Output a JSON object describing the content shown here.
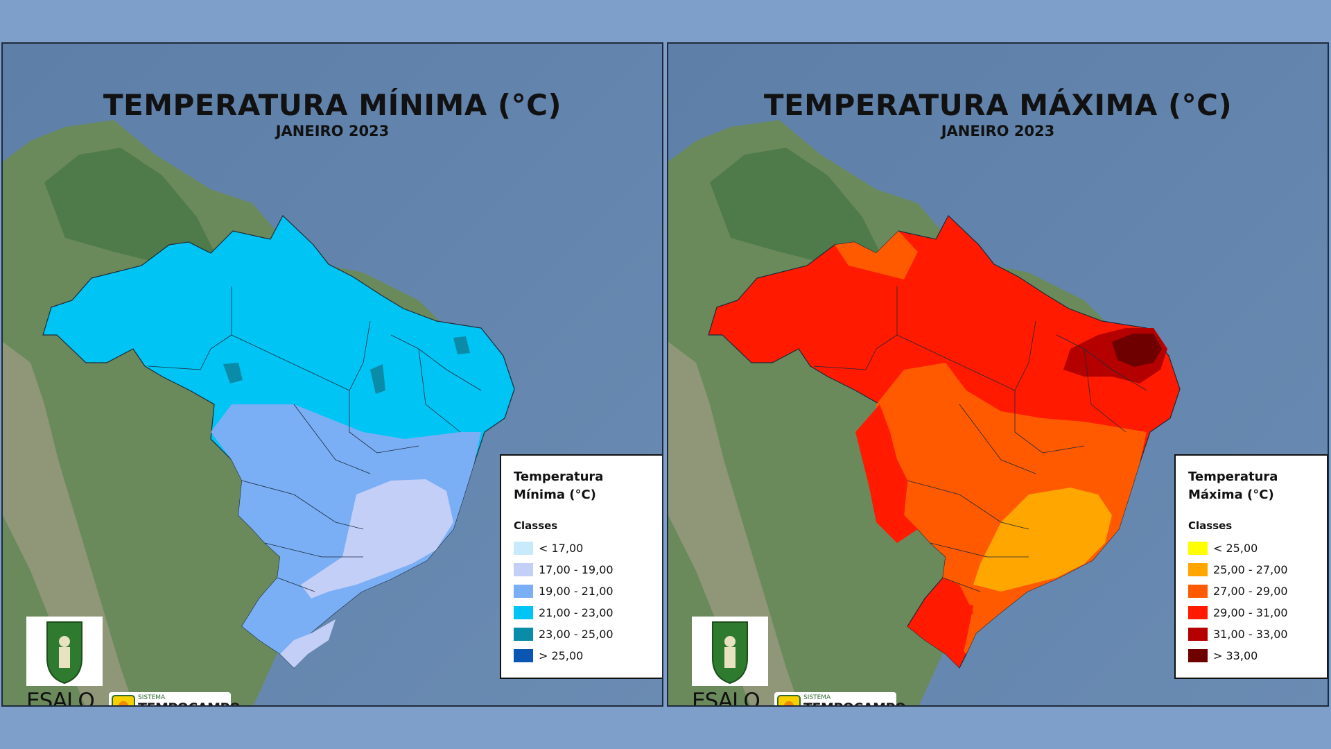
{
  "panels": [
    {
      "title": "TEMPERATURA MÍNIMA (°C)",
      "subtitle": "JANEIRO 2023",
      "legend_title_line1": "Temperatura",
      "legend_title_line2": "Mínima (°C)",
      "classes_label": "Classes",
      "classes": [
        {
          "label": "< 17,00",
          "color": "#c7ebfa"
        },
        {
          "label": "17,00 - 19,00",
          "color": "#c3cff7"
        },
        {
          "label": "19,00 - 21,00",
          "color": "#7aaef5"
        },
        {
          "label": "21,00 - 23,00",
          "color": "#00c4f4"
        },
        {
          "label": "23,00 - 25,00",
          "color": "#0a8ba8"
        },
        {
          "label": "> 25,00",
          "color": "#0b56b3"
        }
      ],
      "brazil_color": "#00c4f4"
    },
    {
      "title": "TEMPERATURA MÁXIMA (°C)",
      "subtitle": "JANEIRO 2023",
      "legend_title_line1": "Temperatura",
      "legend_title_line2": "Máxima (°C)",
      "classes_label": "Classes",
      "classes": [
        {
          "label": "< 25,00",
          "color": "#ffff00"
        },
        {
          "label": "25,00 - 27,00",
          "color": "#ffa600"
        },
        {
          "label": "27,00 - 29,00",
          "color": "#ff5a00"
        },
        {
          "label": "29,00 - 31,00",
          "color": "#ff1a00"
        },
        {
          "label": "31,00 - 33,00",
          "color": "#b50000"
        },
        {
          "label": "> 33,00",
          "color": "#6e0000"
        }
      ],
      "brazil_color": "#ff1a00"
    }
  ],
  "logos": {
    "esalq": "ESALQ",
    "tempo_small": "SISTEMA",
    "tempo_big": "TEMPOCAMPO"
  }
}
